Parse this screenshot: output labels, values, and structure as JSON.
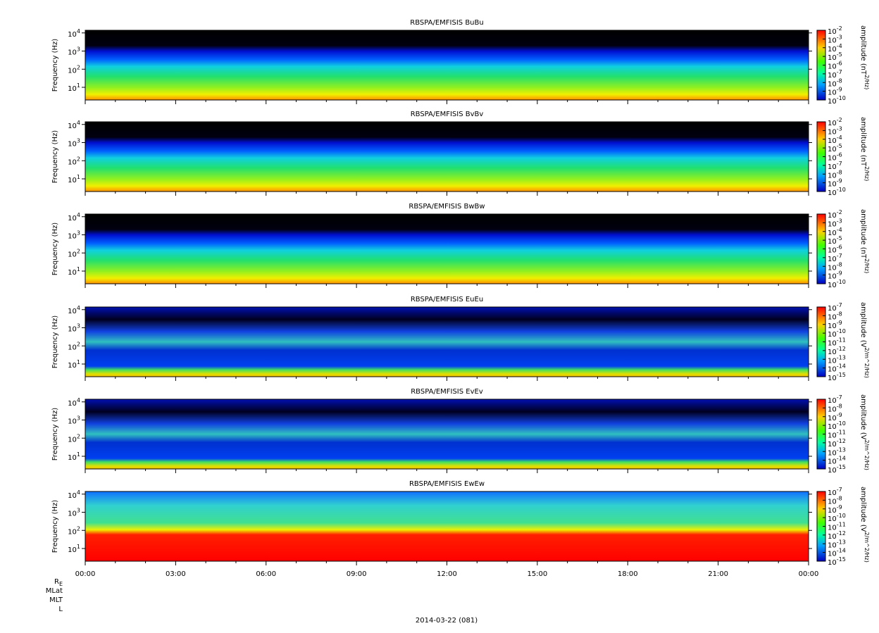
{
  "chart_data": [
    {
      "type": "spectrogram",
      "title": "RBSPA/EMFISIS  BuBu",
      "ylabel": "Frequency (Hz)",
      "ylog": true,
      "ylim": [
        2,
        14000
      ],
      "yticks": [
        {
          "value": 10,
          "label": "10^1"
        },
        {
          "value": 100,
          "label": "10^2"
        },
        {
          "value": 1000,
          "label": "10^3"
        },
        {
          "value": 10000,
          "label": "10^4"
        }
      ],
      "zlabel": "amplitude (nT^2/Hz)",
      "zlog": true,
      "zlim": [
        1e-10,
        0.01
      ],
      "zticks": [
        {
          "value": 0.01,
          "label": "10^-2"
        },
        {
          "value": 0.001,
          "label": "10^-3"
        },
        {
          "value": 0.0001,
          "label": "10^-4"
        },
        {
          "value": 1e-05,
          "label": "10^-5"
        },
        {
          "value": 1e-06,
          "label": "10^-6"
        },
        {
          "value": 1e-07,
          "label": "10^-7"
        },
        {
          "value": 1e-08,
          "label": "10^-8"
        },
        {
          "value": 1e-09,
          "label": "10^-9"
        },
        {
          "value": 1e-10,
          "label": "10^-10"
        }
      ]
    },
    {
      "type": "spectrogram",
      "title": "RBSPA/EMFISIS  BvBv",
      "ylabel": "Frequency (Hz)",
      "ylog": true,
      "ylim": [
        2,
        14000
      ],
      "yticks": [
        {
          "value": 10,
          "label": "10^1"
        },
        {
          "value": 100,
          "label": "10^2"
        },
        {
          "value": 1000,
          "label": "10^3"
        },
        {
          "value": 10000,
          "label": "10^4"
        }
      ],
      "zlabel": "amplitude (nT^2/Hz)",
      "zlog": true,
      "zlim": [
        1e-10,
        0.01
      ],
      "zticks": [
        {
          "value": 0.01,
          "label": "10^-2"
        },
        {
          "value": 0.001,
          "label": "10^-3"
        },
        {
          "value": 0.0001,
          "label": "10^-4"
        },
        {
          "value": 1e-05,
          "label": "10^-5"
        },
        {
          "value": 1e-06,
          "label": "10^-6"
        },
        {
          "value": 1e-07,
          "label": "10^-7"
        },
        {
          "value": 1e-08,
          "label": "10^-8"
        },
        {
          "value": 1e-09,
          "label": "10^-9"
        },
        {
          "value": 1e-10,
          "label": "10^-10"
        }
      ]
    },
    {
      "type": "spectrogram",
      "title": "RBSPA/EMFISIS  BwBw",
      "ylabel": "Frequency (Hz)",
      "ylog": true,
      "ylim": [
        2,
        14000
      ],
      "yticks": [
        {
          "value": 10,
          "label": "10^1"
        },
        {
          "value": 100,
          "label": "10^2"
        },
        {
          "value": 1000,
          "label": "10^3"
        },
        {
          "value": 10000,
          "label": "10^4"
        }
      ],
      "zlabel": "amplitude (nT^2/Hz)",
      "zlog": true,
      "zlim": [
        1e-10,
        0.01
      ],
      "zticks": [
        {
          "value": 0.01,
          "label": "10^-2"
        },
        {
          "value": 0.001,
          "label": "10^-3"
        },
        {
          "value": 0.0001,
          "label": "10^-4"
        },
        {
          "value": 1e-05,
          "label": "10^-5"
        },
        {
          "value": 1e-06,
          "label": "10^-6"
        },
        {
          "value": 1e-07,
          "label": "10^-7"
        },
        {
          "value": 1e-08,
          "label": "10^-8"
        },
        {
          "value": 1e-09,
          "label": "10^-9"
        },
        {
          "value": 1e-10,
          "label": "10^-10"
        }
      ]
    },
    {
      "type": "spectrogram",
      "title": "RBSPA/EMFISIS  EuEu",
      "ylabel": "Frequency (Hz)",
      "ylog": true,
      "ylim": [
        2,
        14000
      ],
      "yticks": [
        {
          "value": 10,
          "label": "10^1"
        },
        {
          "value": 100,
          "label": "10^2"
        },
        {
          "value": 1000,
          "label": "10^3"
        },
        {
          "value": 10000,
          "label": "10^4"
        }
      ],
      "zlabel": "amplitude (V^2/m^2/Hz)",
      "zlog": true,
      "zlim": [
        1e-15,
        1e-07
      ],
      "zticks": [
        {
          "value": 1e-07,
          "label": "10^-7"
        },
        {
          "value": 1e-08,
          "label": "10^-8"
        },
        {
          "value": 1e-09,
          "label": "10^-9"
        },
        {
          "value": 1e-10,
          "label": "10^-10"
        },
        {
          "value": 1e-11,
          "label": "10^-11"
        },
        {
          "value": 1e-12,
          "label": "10^-12"
        },
        {
          "value": 1e-13,
          "label": "10^-13"
        },
        {
          "value": 1e-14,
          "label": "10^-14"
        },
        {
          "value": 1e-15,
          "label": "10^-15"
        }
      ]
    },
    {
      "type": "spectrogram",
      "title": "RBSPA/EMFISIS  EvEv",
      "ylabel": "Frequency (Hz)",
      "ylog": true,
      "ylim": [
        2,
        14000
      ],
      "yticks": [
        {
          "value": 10,
          "label": "10^1"
        },
        {
          "value": 100,
          "label": "10^2"
        },
        {
          "value": 1000,
          "label": "10^3"
        },
        {
          "value": 10000,
          "label": "10^4"
        }
      ],
      "zlabel": "amplitude (V^2/m^2/Hz)",
      "zlog": true,
      "zlim": [
        1e-15,
        1e-07
      ],
      "zticks": [
        {
          "value": 1e-07,
          "label": "10^-7"
        },
        {
          "value": 1e-08,
          "label": "10^-8"
        },
        {
          "value": 1e-09,
          "label": "10^-9"
        },
        {
          "value": 1e-10,
          "label": "10^-10"
        },
        {
          "value": 1e-11,
          "label": "10^-11"
        },
        {
          "value": 1e-12,
          "label": "10^-12"
        },
        {
          "value": 1e-13,
          "label": "10^-13"
        },
        {
          "value": 1e-14,
          "label": "10^-14"
        },
        {
          "value": 1e-15,
          "label": "10^-15"
        }
      ]
    },
    {
      "type": "spectrogram",
      "title": "RBSPA/EMFISIS  EwEw",
      "ylabel": "Frequency (Hz)",
      "ylog": true,
      "ylim": [
        2,
        14000
      ],
      "yticks": [
        {
          "value": 10,
          "label": "10^1"
        },
        {
          "value": 100,
          "label": "10^2"
        },
        {
          "value": 1000,
          "label": "10^3"
        },
        {
          "value": 10000,
          "label": "10^4"
        }
      ],
      "zlabel": "amplitude (V^2/m^2/Hz)",
      "zlog": true,
      "zlim": [
        1e-15,
        1e-07
      ],
      "zticks": [
        {
          "value": 1e-07,
          "label": "10^-7"
        },
        {
          "value": 1e-08,
          "label": "10^-8"
        },
        {
          "value": 1e-09,
          "label": "10^-9"
        },
        {
          "value": 1e-10,
          "label": "10^-10"
        },
        {
          "value": 1e-11,
          "label": "10^-11"
        },
        {
          "value": 1e-12,
          "label": "10^-12"
        },
        {
          "value": 1e-13,
          "label": "10^-13"
        },
        {
          "value": 1e-14,
          "label": "10^-14"
        },
        {
          "value": 1e-15,
          "label": "10^-15"
        }
      ],
      "xlim": [
        0,
        24
      ],
      "xticks": [
        {
          "value": 0,
          "label": "00:00"
        },
        {
          "value": 3,
          "label": "03:00"
        },
        {
          "value": 6,
          "label": "06:00"
        },
        {
          "value": 9,
          "label": "09:00"
        },
        {
          "value": 12,
          "label": "12:00"
        },
        {
          "value": 15,
          "label": "15:00"
        },
        {
          "value": 18,
          "label": "18:00"
        },
        {
          "value": 21,
          "label": "21:00"
        },
        {
          "value": 24,
          "label": "00:00"
        }
      ]
    }
  ],
  "footer": {
    "ephemeris_labels": [
      "R_E",
      "MLat",
      "MLT",
      "L"
    ],
    "date": "2014-03-22 (081)"
  }
}
